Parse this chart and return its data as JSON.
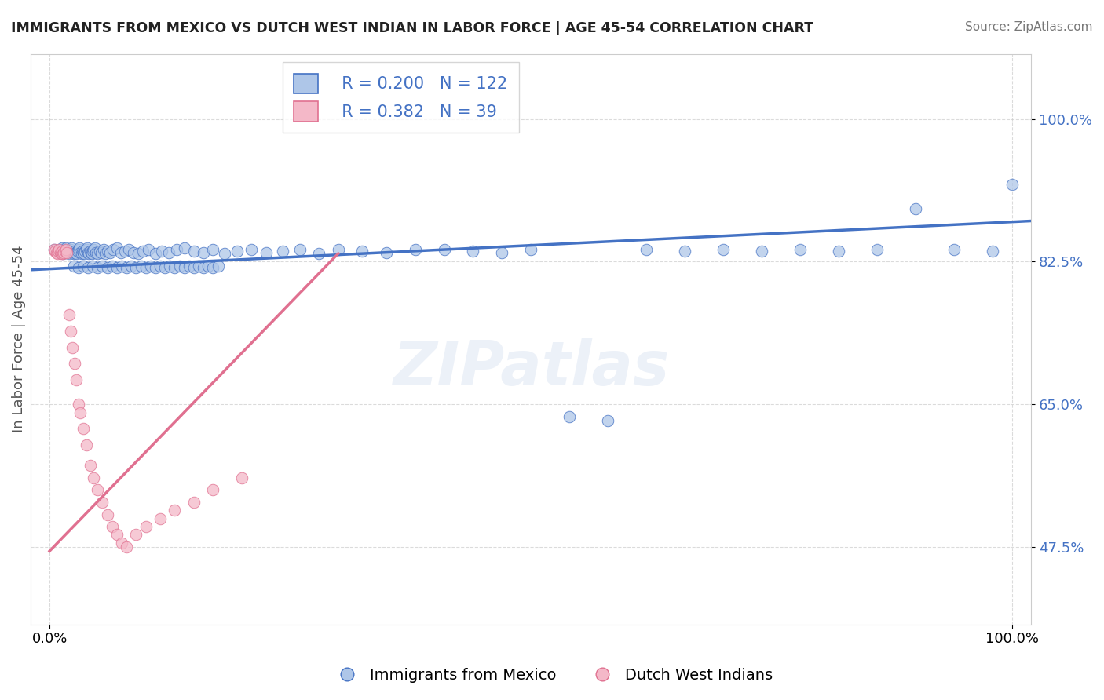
{
  "title": "IMMIGRANTS FROM MEXICO VS DUTCH WEST INDIAN IN LABOR FORCE | AGE 45-54 CORRELATION CHART",
  "source": "Source: ZipAtlas.com",
  "ylabel": "In Labor Force | Age 45-54",
  "y_ticks": [
    0.475,
    0.65,
    0.825,
    1.0
  ],
  "xlim": [
    -0.02,
    1.02
  ],
  "ylim": [
    0.38,
    1.08
  ],
  "blue_R": 0.2,
  "blue_N": 122,
  "pink_R": 0.382,
  "pink_N": 39,
  "blue_color": "#aec6e8",
  "pink_color": "#f4b8c8",
  "blue_line_color": "#4472c4",
  "pink_line_color": "#e07090",
  "legend_blue_label": "Immigrants from Mexico",
  "legend_pink_label": "Dutch West Indians",
  "blue_scatter_x": [
    0.005,
    0.008,
    0.01,
    0.012,
    0.013,
    0.014,
    0.015,
    0.016,
    0.017,
    0.018,
    0.02,
    0.021,
    0.022,
    0.023,
    0.024,
    0.025,
    0.026,
    0.027,
    0.028,
    0.029,
    0.03,
    0.031,
    0.032,
    0.033,
    0.034,
    0.035,
    0.036,
    0.037,
    0.038,
    0.039,
    0.04,
    0.041,
    0.042,
    0.043,
    0.044,
    0.045,
    0.046,
    0.047,
    0.048,
    0.05,
    0.052,
    0.054,
    0.056,
    0.058,
    0.06,
    0.063,
    0.066,
    0.07,
    0.074,
    0.078,
    0.082,
    0.087,
    0.092,
    0.097,
    0.103,
    0.11,
    0.117,
    0.124,
    0.132,
    0.14,
    0.15,
    0.16,
    0.17,
    0.182,
    0.195,
    0.21,
    0.225,
    0.242,
    0.26,
    0.28,
    0.3,
    0.325,
    0.35,
    0.38,
    0.41,
    0.44,
    0.47,
    0.5,
    0.54,
    0.58,
    0.62,
    0.66,
    0.7,
    0.74,
    0.78,
    0.82,
    0.86,
    0.9,
    0.94,
    0.98,
    0.025,
    0.03,
    0.035,
    0.04,
    0.045,
    0.05,
    0.055,
    0.06,
    0.065,
    0.07,
    0.075,
    0.08,
    0.085,
    0.09,
    0.095,
    0.1,
    0.105,
    0.11,
    0.115,
    0.12,
    0.125,
    0.13,
    0.135,
    0.14,
    0.145,
    0.15,
    0.155,
    0.16,
    0.165,
    0.17,
    0.175,
    1.0
  ],
  "blue_scatter_y": [
    0.84,
    0.838,
    0.836,
    0.84,
    0.842,
    0.835,
    0.838,
    0.84,
    0.842,
    0.836,
    0.835,
    0.838,
    0.84,
    0.842,
    0.836,
    0.835,
    0.838,
    0.836,
    0.835,
    0.838,
    0.84,
    0.842,
    0.836,
    0.835,
    0.838,
    0.836,
    0.835,
    0.838,
    0.84,
    0.842,
    0.836,
    0.835,
    0.838,
    0.836,
    0.835,
    0.838,
    0.84,
    0.842,
    0.836,
    0.835,
    0.838,
    0.836,
    0.84,
    0.835,
    0.838,
    0.836,
    0.84,
    0.842,
    0.836,
    0.838,
    0.84,
    0.836,
    0.835,
    0.838,
    0.84,
    0.835,
    0.838,
    0.836,
    0.84,
    0.842,
    0.838,
    0.836,
    0.84,
    0.835,
    0.838,
    0.84,
    0.836,
    0.838,
    0.84,
    0.835,
    0.84,
    0.838,
    0.836,
    0.84,
    0.84,
    0.838,
    0.836,
    0.84,
    0.635,
    0.63,
    0.84,
    0.838,
    0.84,
    0.838,
    0.84,
    0.838,
    0.84,
    0.89,
    0.84,
    0.838,
    0.82,
    0.818,
    0.82,
    0.818,
    0.82,
    0.818,
    0.82,
    0.818,
    0.82,
    0.818,
    0.82,
    0.818,
    0.82,
    0.818,
    0.82,
    0.818,
    0.82,
    0.818,
    0.82,
    0.818,
    0.82,
    0.818,
    0.82,
    0.818,
    0.82,
    0.818,
    0.82,
    0.818,
    0.82,
    0.818,
    0.82,
    0.92
  ],
  "pink_scatter_x": [
    0.005,
    0.006,
    0.007,
    0.008,
    0.009,
    0.01,
    0.011,
    0.012,
    0.013,
    0.014,
    0.015,
    0.016,
    0.017,
    0.018,
    0.02,
    0.022,
    0.024,
    0.026,
    0.028,
    0.03,
    0.032,
    0.035,
    0.038,
    0.042,
    0.046,
    0.05,
    0.055,
    0.06,
    0.065,
    0.07,
    0.075,
    0.08,
    0.09,
    0.1,
    0.115,
    0.13,
    0.15,
    0.17,
    0.2
  ],
  "pink_scatter_y": [
    0.84,
    0.838,
    0.836,
    0.835,
    0.838,
    0.84,
    0.836,
    0.835,
    0.838,
    0.835,
    0.836,
    0.838,
    0.84,
    0.836,
    0.76,
    0.74,
    0.72,
    0.7,
    0.68,
    0.65,
    0.64,
    0.62,
    0.6,
    0.575,
    0.56,
    0.545,
    0.53,
    0.515,
    0.5,
    0.49,
    0.48,
    0.475,
    0.49,
    0.5,
    0.51,
    0.52,
    0.53,
    0.545,
    0.56
  ]
}
